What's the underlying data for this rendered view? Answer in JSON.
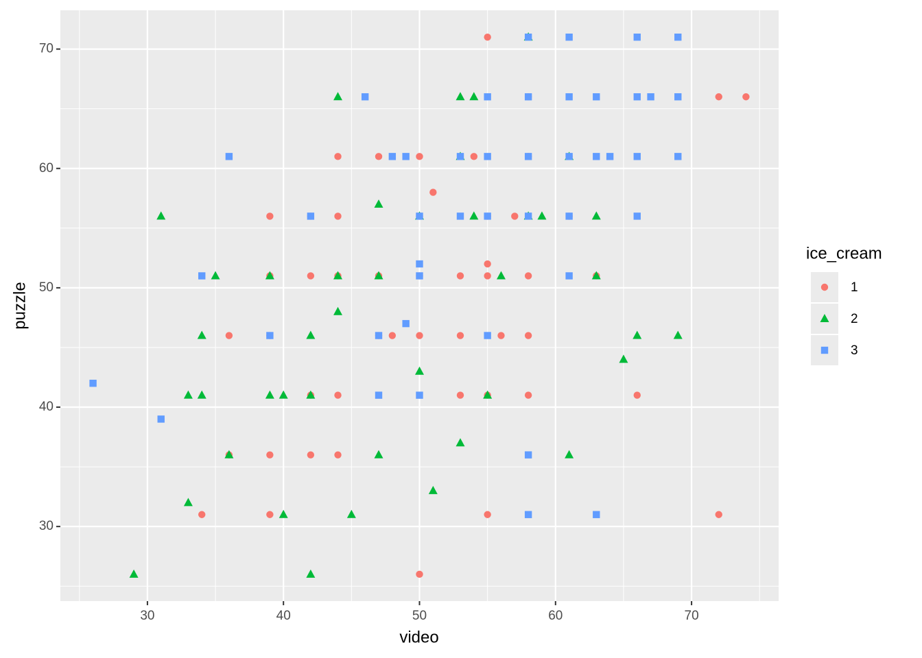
{
  "chart_data": {
    "type": "scatter",
    "x_label": "video",
    "y_label": "puzzle",
    "legend_title": "ice_cream",
    "xlim": [
      23.6,
      76.4
    ],
    "ylim": [
      23.75,
      73.25
    ],
    "xticks": [
      30,
      40,
      50,
      60,
      70
    ],
    "yticks": [
      30,
      40,
      50,
      60,
      70
    ],
    "xminor": [
      25,
      35,
      45,
      55,
      65,
      75
    ],
    "yminor": [
      25,
      35,
      45,
      55,
      65
    ],
    "grid": true,
    "legend": "right",
    "series": [
      {
        "name": "1",
        "color": "#F8766D",
        "shape": "circle",
        "x": [
          55,
          72,
          74,
          58,
          44,
          47,
          50,
          54,
          58,
          61,
          51,
          39,
          42,
          44,
          50,
          55,
          57,
          61,
          55,
          39,
          42,
          44,
          47,
          50,
          53,
          55,
          58,
          63,
          36,
          39,
          47,
          48,
          50,
          53,
          56,
          58,
          42,
          44,
          53,
          55,
          58,
          66,
          36,
          39,
          42,
          44,
          34,
          39,
          55,
          72,
          50
        ],
        "values": [
          71,
          66,
          66,
          66,
          61,
          61,
          61,
          61,
          61,
          61,
          58,
          56,
          56,
          56,
          56,
          56,
          56,
          56,
          52,
          51,
          51,
          51,
          51,
          51,
          51,
          51,
          51,
          51,
          46,
          46,
          46,
          46,
          46,
          46,
          46,
          46,
          41,
          41,
          41,
          41,
          41,
          41,
          36,
          36,
          36,
          36,
          31,
          31,
          31,
          31,
          26
        ]
      },
      {
        "name": "2",
        "color": "#00BA38",
        "shape": "triangle",
        "x": [
          58,
          44,
          53,
          54,
          53,
          61,
          47,
          31,
          50,
          54,
          58,
          59,
          63,
          35,
          39,
          44,
          47,
          56,
          63,
          44,
          34,
          42,
          66,
          69,
          65,
          50,
          33,
          34,
          39,
          40,
          42,
          55,
          53,
          36,
          47,
          61,
          51,
          33,
          40,
          45,
          29,
          42
        ],
        "values": [
          71,
          66,
          66,
          66,
          61,
          61,
          57,
          56,
          56,
          56,
          56,
          56,
          56,
          51,
          51,
          51,
          51,
          51,
          51,
          48,
          46,
          46,
          46,
          46,
          44,
          43,
          41,
          41,
          41,
          41,
          41,
          41,
          37,
          36,
          36,
          36,
          33,
          32,
          31,
          31,
          26,
          26
        ]
      },
      {
        "name": "3",
        "color": "#619CFF",
        "shape": "square",
        "x": [
          58,
          61,
          66,
          69,
          46,
          55,
          58,
          61,
          63,
          66,
          67,
          69,
          36,
          48,
          49,
          53,
          55,
          58,
          61,
          63,
          64,
          66,
          69,
          42,
          50,
          53,
          55,
          58,
          61,
          66,
          50,
          34,
          50,
          61,
          49,
          39,
          47,
          55,
          26,
          47,
          50,
          31,
          58,
          58,
          63
        ],
        "values": [
          71,
          71,
          71,
          71,
          66,
          66,
          66,
          66,
          66,
          66,
          66,
          66,
          61,
          61,
          61,
          61,
          61,
          61,
          61,
          61,
          61,
          61,
          61,
          56,
          56,
          56,
          56,
          56,
          56,
          56,
          52,
          51,
          51,
          51,
          47,
          46,
          46,
          46,
          42,
          41,
          41,
          39,
          36,
          31,
          31
        ]
      }
    ]
  }
}
